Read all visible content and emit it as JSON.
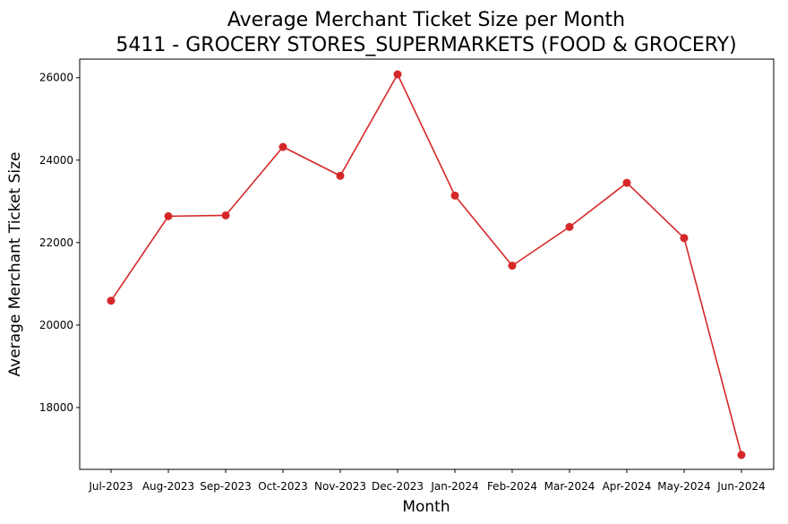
{
  "chart_data": {
    "type": "line",
    "title": "Average Merchant Ticket Size per Month",
    "subtitle": "5411 - GROCERY STORES_SUPERMARKETS (FOOD & GROCERY)",
    "xlabel": "Month",
    "ylabel": "Average Merchant Ticket Size",
    "categories": [
      "Jul-2023",
      "Aug-2023",
      "Sep-2023",
      "Oct-2023",
      "Nov-2023",
      "Dec-2023",
      "Jan-2024",
      "Feb-2024",
      "Mar-2024",
      "Apr-2024",
      "May-2024",
      "Jun-2024"
    ],
    "series": [
      {
        "values": [
          20590,
          22640,
          22660,
          24320,
          23620,
          26080,
          23140,
          21440,
          22380,
          23450,
          22110,
          16850
        ],
        "color": "#d62728"
      }
    ],
    "ylim": [
      16500,
      26450
    ],
    "yticks": [
      18000,
      20000,
      22000,
      24000,
      26000
    ],
    "grid": false,
    "legend": "none"
  }
}
